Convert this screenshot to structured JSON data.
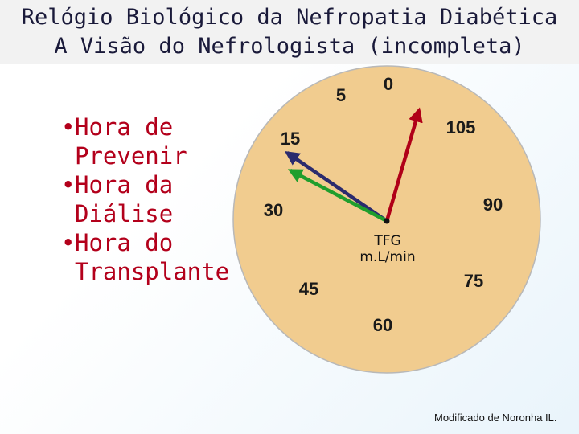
{
  "title": {
    "line1": "Relógio Biológico da Nefropatia Diabética",
    "line2": "A Visão do Nefrologista (incompleta)"
  },
  "bullets": [
    {
      "lines": [
        "Hora de",
        "Prevenir"
      ]
    },
    {
      "lines": [
        "Hora da",
        "Diálise"
      ]
    },
    {
      "lines": [
        "Hora do",
        "Transplante"
      ]
    }
  ],
  "bullet_symbol": "•",
  "clock": {
    "face_color": "#f1cc8f",
    "tick_labels": [
      "0",
      "5",
      "105",
      "15",
      "90",
      "30",
      "75",
      "45",
      "60"
    ],
    "center_label_lines": [
      "TFG",
      "m.L/min"
    ],
    "hands": [
      {
        "color": "#b00018",
        "points_to": "105"
      },
      {
        "color": "#2b2b6e",
        "points_to": "15"
      },
      {
        "color": "#1f9e2d",
        "points_to": "15"
      }
    ]
  },
  "credit": "Modificado de Noronha IL."
}
